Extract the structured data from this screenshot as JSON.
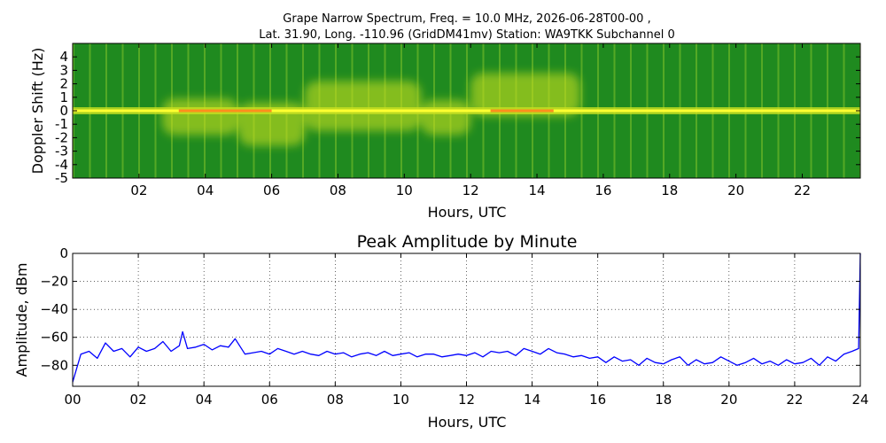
{
  "figure": {
    "title_line1": "Grape Narrow Spectrum, Freq. = 10.0 MHz, 2026-06-28T00-00 ,",
    "title_line2": "Lat.  31.90, Long. -110.96 (GridDM41mv) Station: WA9TKK Subchannel 0"
  },
  "chart_data": [
    {
      "type": "heatmap",
      "title": "",
      "xlabel": "Hours, UTC",
      "ylabel": "Doppler Shift (Hz)",
      "xlim": [
        0,
        23.75
      ],
      "ylim": [
        -5,
        5
      ],
      "xticks": [
        "02",
        "04",
        "06",
        "08",
        "10",
        "12",
        "14",
        "16",
        "18",
        "20",
        "22"
      ],
      "xtick_values": [
        2,
        4,
        6,
        8,
        10,
        12,
        14,
        16,
        18,
        20,
        22
      ],
      "yticks": [
        "-5",
        "-4",
        "-3",
        "-2",
        "-1",
        "0",
        "1",
        "2",
        "3",
        "4"
      ],
      "ytick_values": [
        -5,
        -4,
        -3,
        -2,
        -1,
        0,
        1,
        2,
        3,
        4
      ],
      "colors": {
        "background": "#1f8a1f",
        "mid": "#c8e020",
        "high": "#ffff30",
        "peak": "#ff3010"
      },
      "carrier_doppler_hz": 0,
      "disturbed_regions": [
        {
          "start": 2.7,
          "end": 5.0,
          "low": -1.8,
          "high": 0.9
        },
        {
          "start": 5.0,
          "end": 7.0,
          "low": -2.6,
          "high": 0.6
        },
        {
          "start": 7.0,
          "end": 10.5,
          "low": -1.5,
          "high": 2.2
        },
        {
          "start": 10.5,
          "end": 12.0,
          "low": -1.8,
          "high": 0.8
        },
        {
          "start": 12.0,
          "end": 15.3,
          "low": -0.4,
          "high": 2.8
        }
      ]
    },
    {
      "type": "line",
      "title": "Peak Amplitude by Minute",
      "xlabel": "Hours, UTC",
      "ylabel": "Amplitude, dBm",
      "xlim": [
        0,
        24
      ],
      "ylim": [
        -95,
        0
      ],
      "grid": true,
      "xticks": [
        "00",
        "02",
        "04",
        "06",
        "08",
        "10",
        "12",
        "14",
        "16",
        "18",
        "20",
        "22",
        "24"
      ],
      "xtick_values": [
        0,
        2,
        4,
        6,
        8,
        10,
        12,
        14,
        16,
        18,
        20,
        22,
        24
      ],
      "yticks": [
        "0",
        "−20",
        "−40",
        "−60",
        "−80"
      ],
      "ytick_values": [
        0,
        -20,
        -40,
        -60,
        -80
      ],
      "series": [
        {
          "name": "",
          "color": "#0000ff",
          "x": [
            0.0,
            0.25,
            0.5,
            0.75,
            1.0,
            1.25,
            1.5,
            1.75,
            2.0,
            2.25,
            2.5,
            2.75,
            3.0,
            3.25,
            3.35,
            3.5,
            3.75,
            4.0,
            4.25,
            4.5,
            4.75,
            4.95,
            5.25,
            5.5,
            5.75,
            6.0,
            6.25,
            6.5,
            6.75,
            7.0,
            7.25,
            7.5,
            7.75,
            8.0,
            8.25,
            8.5,
            8.75,
            9.0,
            9.25,
            9.5,
            9.75,
            10.0,
            10.25,
            10.5,
            10.75,
            11.0,
            11.25,
            11.5,
            11.75,
            12.0,
            12.25,
            12.5,
            12.75,
            13.0,
            13.25,
            13.5,
            13.75,
            14.0,
            14.25,
            14.5,
            14.75,
            15.0,
            15.25,
            15.5,
            15.75,
            16.0,
            16.25,
            16.5,
            16.75,
            17.0,
            17.25,
            17.5,
            17.75,
            18.0,
            18.25,
            18.5,
            18.75,
            19.0,
            19.25,
            19.5,
            19.75,
            20.0,
            20.25,
            20.5,
            20.75,
            21.0,
            21.25,
            21.5,
            21.75,
            22.0,
            22.25,
            22.5,
            22.75,
            23.0,
            23.25,
            23.5,
            23.75,
            23.95,
            24.0
          ],
          "values": [
            -92,
            -72,
            -70,
            -75,
            -64,
            -70,
            -68,
            -74,
            -67,
            -70,
            -68,
            -63,
            -70,
            -66,
            -56,
            -68,
            -67,
            -65,
            -69,
            -66,
            -67,
            -61,
            -72,
            -71,
            -70,
            -72,
            -68,
            -70,
            -72,
            -70,
            -72,
            -73,
            -70,
            -72,
            -71,
            -74,
            -72,
            -71,
            -73,
            -70,
            -73,
            -72,
            -71,
            -74,
            -72,
            -72,
            -74,
            -73,
            -72,
            -73,
            -71,
            -74,
            -70,
            -71,
            -70,
            -73,
            -68,
            -70,
            -72,
            -68,
            -71,
            -72,
            -74,
            -73,
            -75,
            -74,
            -78,
            -74,
            -77,
            -76,
            -80,
            -75,
            -78,
            -79,
            -76,
            -74,
            -80,
            -76,
            -79,
            -78,
            -74,
            -77,
            -80,
            -78,
            -75,
            -79,
            -77,
            -80,
            -76,
            -79,
            -78,
            -75,
            -80,
            -74,
            -77,
            -72,
            -70,
            -68,
            0
          ]
        }
      ]
    }
  ]
}
